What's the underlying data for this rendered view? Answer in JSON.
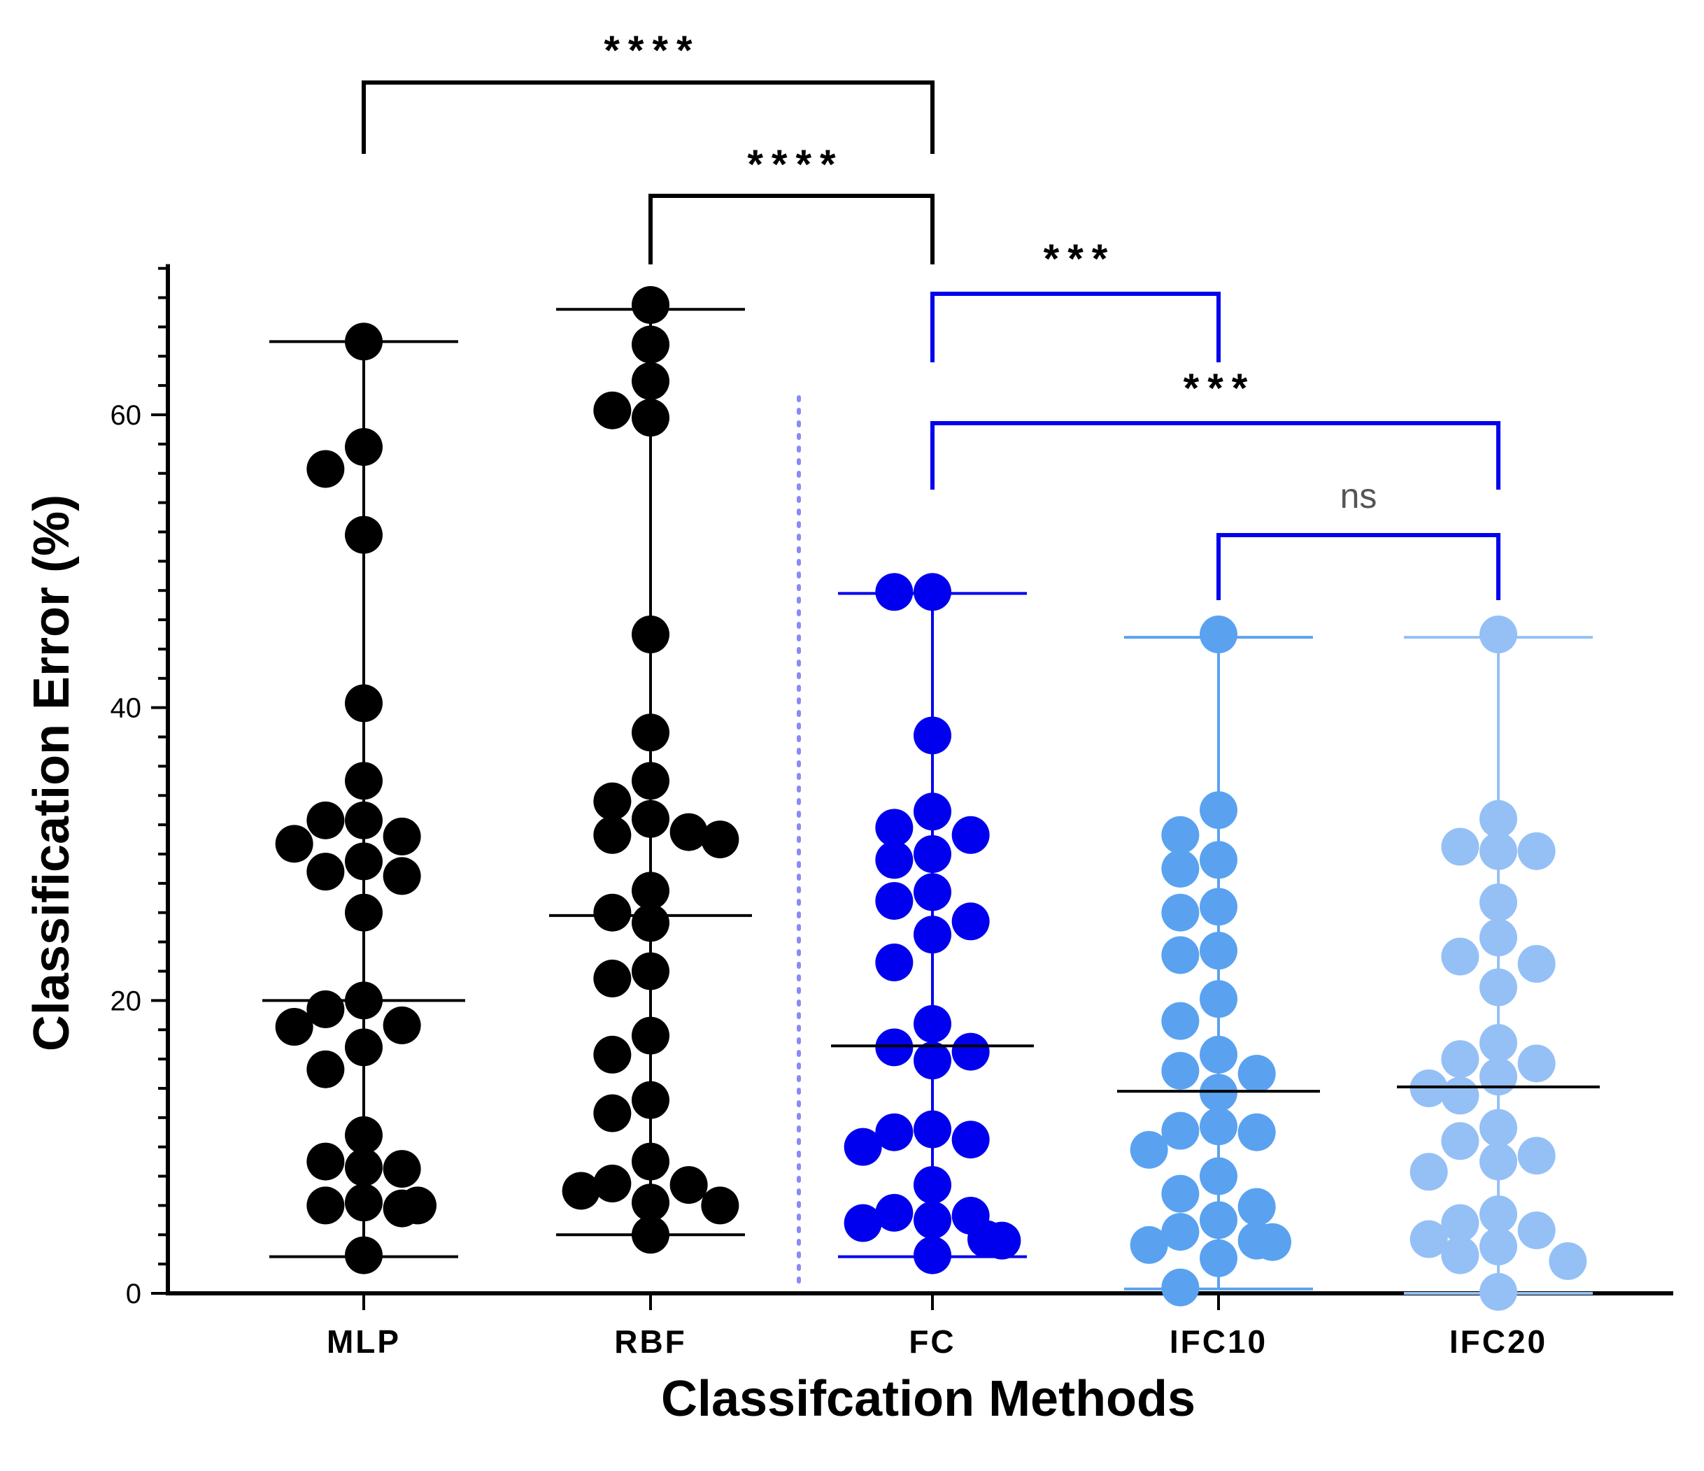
{
  "chart_data": {
    "type": "scatter",
    "xlabel": "Classifcation  Methods",
    "ylabel": "Classification Error (%)",
    "ylim": [
      0,
      70
    ],
    "yticks": [
      0,
      20,
      40,
      60
    ],
    "grid": false,
    "categories": [
      "MLP",
      "RBF",
      "FC",
      "IFC10",
      "IFC20"
    ],
    "colors": {
      "MLP": "#000000",
      "RBF": "#000000",
      "FC": "#0000ee",
      "IFC10": "#5aa2f0",
      "IFC20": "#95c0f6"
    },
    "series": [
      {
        "name": "MLP",
        "median": 20.0,
        "min": 2.5,
        "max": 65.0,
        "values": [
          65.0,
          57.8,
          56.3,
          51.8,
          40.3,
          35.0,
          32.3,
          32.3,
          31.2,
          30.7,
          29.5,
          28.8,
          28.5,
          26.0,
          20.0,
          19.4,
          18.3,
          18.2,
          16.8,
          15.3,
          10.8,
          9.0,
          8.6,
          8.5,
          6.2,
          6.0,
          5.8,
          6.0,
          2.6
        ]
      },
      {
        "name": "RBF",
        "median": 25.8,
        "min": 4.0,
        "max": 67.2,
        "values": [
          67.5,
          64.8,
          62.3,
          60.3,
          59.8,
          45.0,
          38.3,
          35.0,
          33.6,
          32.4,
          31.5,
          31.3,
          31.0,
          27.5,
          26.0,
          25.3,
          22.0,
          21.5,
          17.6,
          16.3,
          13.2,
          12.3,
          9.0,
          7.5,
          7.4,
          7.0,
          6.2,
          6.0,
          4.0
        ]
      },
      {
        "name": "FC",
        "median": 16.9,
        "min": 2.5,
        "max": 47.8,
        "values": [
          47.9,
          47.9,
          38.1,
          32.9,
          31.8,
          31.3,
          30.0,
          29.6,
          27.4,
          26.8,
          25.4,
          24.5,
          22.6,
          18.4,
          16.8,
          16.5,
          15.9,
          11.2,
          11.0,
          10.5,
          10.0,
          7.4,
          5.5,
          5.3,
          5.0,
          4.8,
          3.6,
          3.7,
          2.6
        ]
      },
      {
        "name": "IFC10",
        "median": 13.8,
        "min": 0.3,
        "max": 44.8,
        "values": [
          45.0,
          33.0,
          31.3,
          29.6,
          29.0,
          26.4,
          26.0,
          23.4,
          23.1,
          20.1,
          18.6,
          16.3,
          15.2,
          15.0,
          13.7,
          11.4,
          11.1,
          11.0,
          9.8,
          8.0,
          6.8,
          5.9,
          5.0,
          4.2,
          3.6,
          3.3,
          3.5,
          2.4,
          0.4
        ]
      },
      {
        "name": "IFC20",
        "median": 14.1,
        "min": 0.0,
        "max": 44.8,
        "values": [
          45.0,
          32.4,
          30.5,
          30.2,
          30.2,
          26.7,
          24.3,
          23.0,
          22.5,
          20.9,
          17.1,
          16.0,
          15.7,
          14.8,
          14.0,
          13.5,
          11.3,
          10.4,
          9.4,
          9.0,
          8.3,
          5.4,
          4.8,
          4.3,
          3.7,
          3.2,
          2.6,
          2.2,
          0.1
        ]
      }
    ],
    "comparisons": [
      {
        "from": "MLP",
        "to": "FC",
        "label": "****",
        "color": "#000000"
      },
      {
        "from": "RBF",
        "to": "FC",
        "label": "****",
        "color": "#000000"
      },
      {
        "from": "FC",
        "to": "IFC10",
        "label": "***",
        "color": "#0000ee"
      },
      {
        "from": "FC",
        "to": "IFC20",
        "label": "***",
        "color": "#0000ee"
      },
      {
        "from": "IFC10",
        "to": "IFC20",
        "label": "ns",
        "color": "#0000ee"
      }
    ]
  }
}
